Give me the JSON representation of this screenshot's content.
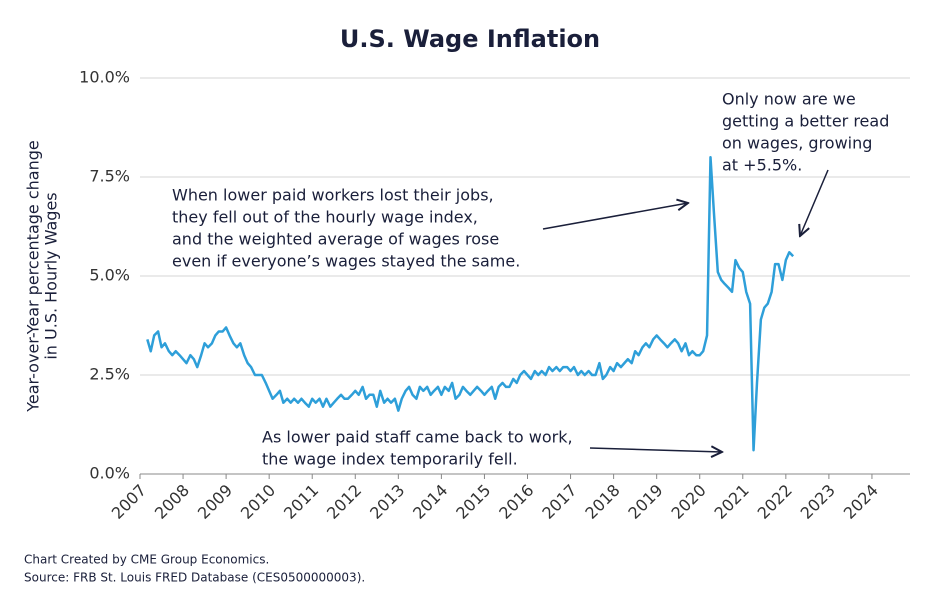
{
  "chart_data": {
    "type": "line",
    "title": "U.S. Wage Inflation",
    "y_label": [
      "Year-over-Year percentage change",
      "in U.S. Hourly Wages"
    ],
    "color": "#2e9fd9",
    "grid": true,
    "xlim": [
      2007,
      2025
    ],
    "xticks": [
      2007,
      2008,
      2009,
      2010,
      2011,
      2012,
      2013,
      2014,
      2015,
      2016,
      2017,
      2018,
      2019,
      2020,
      2021,
      2022,
      2023,
      2024
    ],
    "ylim": [
      0,
      10
    ],
    "yticks": [
      {
        "value": 0,
        "label": "0.0%"
      },
      {
        "value": 2.5,
        "label": "2.5%"
      },
      {
        "value": 5,
        "label": "5.0%"
      },
      {
        "value": 7.5,
        "label": "7.5%"
      },
      {
        "value": 10,
        "label": "10.0%"
      }
    ],
    "x": [
      2007.17,
      2007.25,
      2007.33,
      2007.42,
      2007.5,
      2007.58,
      2007.67,
      2007.75,
      2007.83,
      2007.92,
      2008,
      2008.08,
      2008.17,
      2008.25,
      2008.33,
      2008.42,
      2008.5,
      2008.58,
      2008.67,
      2008.75,
      2008.83,
      2008.92,
      2009,
      2009.08,
      2009.17,
      2009.25,
      2009.33,
      2009.42,
      2009.5,
      2009.58,
      2009.67,
      2009.75,
      2009.83,
      2009.92,
      2010,
      2010.08,
      2010.17,
      2010.25,
      2010.33,
      2010.42,
      2010.5,
      2010.58,
      2010.67,
      2010.75,
      2010.83,
      2010.92,
      2011,
      2011.08,
      2011.17,
      2011.25,
      2011.33,
      2011.42,
      2011.5,
      2011.58,
      2011.67,
      2011.75,
      2011.83,
      2011.92,
      2012,
      2012.08,
      2012.17,
      2012.25,
      2012.33,
      2012.42,
      2012.5,
      2012.58,
      2012.67,
      2012.75,
      2012.83,
      2012.92,
      2013,
      2013.08,
      2013.17,
      2013.25,
      2013.33,
      2013.42,
      2013.5,
      2013.58,
      2013.67,
      2013.75,
      2013.83,
      2013.92,
      2014,
      2014.08,
      2014.17,
      2014.25,
      2014.33,
      2014.42,
      2014.5,
      2014.58,
      2014.67,
      2014.75,
      2014.83,
      2014.92,
      2015,
      2015.08,
      2015.17,
      2015.25,
      2015.33,
      2015.42,
      2015.5,
      2015.58,
      2015.67,
      2015.75,
      2015.83,
      2015.92,
      2016,
      2016.08,
      2016.17,
      2016.25,
      2016.33,
      2016.42,
      2016.5,
      2016.58,
      2016.67,
      2016.75,
      2016.83,
      2016.92,
      2017,
      2017.08,
      2017.17,
      2017.25,
      2017.33,
      2017.42,
      2017.5,
      2017.58,
      2017.67,
      2017.75,
      2017.83,
      2017.92,
      2018,
      2018.08,
      2018.17,
      2018.25,
      2018.33,
      2018.42,
      2018.5,
      2018.58,
      2018.67,
      2018.75,
      2018.83,
      2018.92,
      2019,
      2019.08,
      2019.17,
      2019.25,
      2019.33,
      2019.42,
      2019.5,
      2019.58,
      2019.67,
      2019.75,
      2019.83,
      2019.92,
      2020,
      2020.08,
      2020.17,
      2020.25,
      2020.33,
      2020.42,
      2020.5,
      2020.58,
      2020.67,
      2020.75,
      2020.83,
      2020.92,
      2021,
      2021.08,
      2021.17,
      2021.25,
      2021.33,
      2021.42,
      2021.5,
      2021.58,
      2021.67,
      2021.75,
      2021.83,
      2021.92,
      2022,
      2022.08,
      2022.17
    ],
    "values": [
      3.4,
      3.1,
      3.5,
      3.6,
      3.2,
      3.3,
      3.1,
      3.0,
      3.1,
      3.0,
      2.9,
      2.8,
      3.0,
      2.9,
      2.7,
      3.0,
      3.3,
      3.2,
      3.3,
      3.5,
      3.6,
      3.6,
      3.7,
      3.5,
      3.3,
      3.2,
      3.3,
      3.0,
      2.8,
      2.7,
      2.5,
      2.5,
      2.5,
      2.3,
      2.1,
      1.9,
      2.0,
      2.1,
      1.8,
      1.9,
      1.8,
      1.9,
      1.8,
      1.9,
      1.8,
      1.7,
      1.9,
      1.8,
      1.9,
      1.7,
      1.9,
      1.7,
      1.8,
      1.9,
      2.0,
      1.9,
      1.9,
      2.0,
      2.1,
      2.0,
      2.2,
      1.9,
      2.0,
      2.0,
      1.7,
      2.1,
      1.8,
      1.9,
      1.8,
      1.9,
      1.6,
      1.9,
      2.1,
      2.2,
      2.0,
      1.9,
      2.2,
      2.1,
      2.2,
      2.0,
      2.1,
      2.2,
      2.0,
      2.2,
      2.1,
      2.3,
      1.9,
      2.0,
      2.2,
      2.1,
      2.0,
      2.1,
      2.2,
      2.1,
      2.0,
      2.1,
      2.2,
      1.9,
      2.2,
      2.3,
      2.2,
      2.2,
      2.4,
      2.3,
      2.5,
      2.6,
      2.5,
      2.4,
      2.6,
      2.5,
      2.6,
      2.5,
      2.7,
      2.6,
      2.7,
      2.6,
      2.7,
      2.7,
      2.6,
      2.7,
      2.5,
      2.6,
      2.5,
      2.6,
      2.5,
      2.5,
      2.8,
      2.4,
      2.5,
      2.7,
      2.6,
      2.8,
      2.7,
      2.8,
      2.9,
      2.8,
      3.1,
      3.0,
      3.2,
      3.3,
      3.2,
      3.4,
      3.5,
      3.4,
      3.3,
      3.2,
      3.3,
      3.4,
      3.3,
      3.1,
      3.3,
      3.0,
      3.1,
      3.0,
      3.0,
      3.1,
      3.5,
      8.0,
      6.6,
      5.1,
      4.9,
      4.8,
      4.7,
      4.6,
      5.4,
      5.2,
      5.1,
      4.6,
      4.3,
      0.6,
      2.3,
      3.9,
      4.2,
      4.3,
      4.6,
      5.3,
      5.3,
      4.9,
      5.4,
      5.6,
      5.5
    ],
    "annotations": [
      {
        "lines": [
          "When lower paid workers lost their jobs,",
          "they fell out of the hourly wage index,",
          "and the weighted average of wages rose",
          "even if everyone’s wages stayed the same."
        ]
      },
      {
        "lines": [
          "Only now are we",
          "getting a better read",
          "on wages, growing",
          "at +5.5%."
        ]
      },
      {
        "lines": [
          "As lower paid staff came back to work,",
          "the wage index temporarily fell."
        ]
      }
    ],
    "footer": [
      "Chart Created by CME Group Economics.",
      "Source: FRB St. Louis FRED Database (CES0500000003)."
    ]
  }
}
